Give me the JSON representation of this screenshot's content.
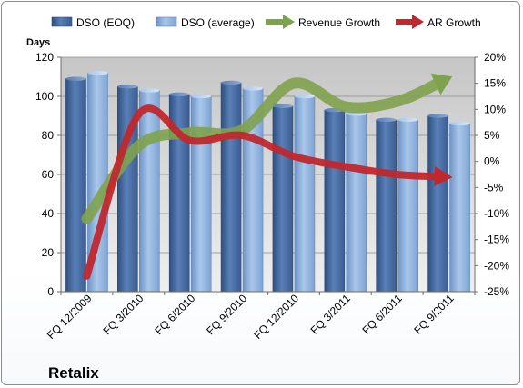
{
  "chart_data": {
    "type": "bar",
    "company": "Retalix",
    "y_left_label": "Days",
    "y_left_range": [
      0,
      120
    ],
    "y_left_ticks": [
      "0",
      "20",
      "40",
      "60",
      "80",
      "100",
      "120"
    ],
    "y_right_range": [
      -25,
      20
    ],
    "y_right_ticks": [
      "-25%",
      "-20%",
      "-15%",
      "-10%",
      "-5%",
      "0%",
      "5%",
      "10%",
      "15%",
      "20%"
    ],
    "grid": true,
    "legend_position": "top",
    "categories": [
      "FQ 12/2009",
      "FQ 3/2010",
      "FQ 6/2010",
      "FQ 9/2010",
      "FQ 12/2010",
      "FQ 3/2011",
      "FQ 6/2011",
      "FQ 9/2011"
    ],
    "series": [
      {
        "name": "DSO (EOQ)",
        "kind": "bar",
        "axis": "left",
        "color": "#4a6fa5",
        "values": [
          109,
          105,
          101,
          107,
          95,
          93,
          88,
          90
        ]
      },
      {
        "name": "DSO (average)",
        "kind": "bar",
        "axis": "left",
        "color": "#8fb2dc",
        "values": [
          112,
          103,
          100,
          104,
          100,
          91,
          88,
          86
        ]
      },
      {
        "name": "Revenue Growth",
        "kind": "arrow-line",
        "axis": "right",
        "color": "#7fa24e",
        "values": [
          -11,
          3,
          5.5,
          6,
          15,
          10.5,
          11.5,
          16
        ]
      },
      {
        "name": "AR Growth",
        "kind": "arrow-line",
        "axis": "right",
        "color": "#c0282d",
        "values": [
          -22,
          9,
          4,
          5,
          1,
          -1,
          -2.5,
          -3
        ]
      }
    ]
  }
}
